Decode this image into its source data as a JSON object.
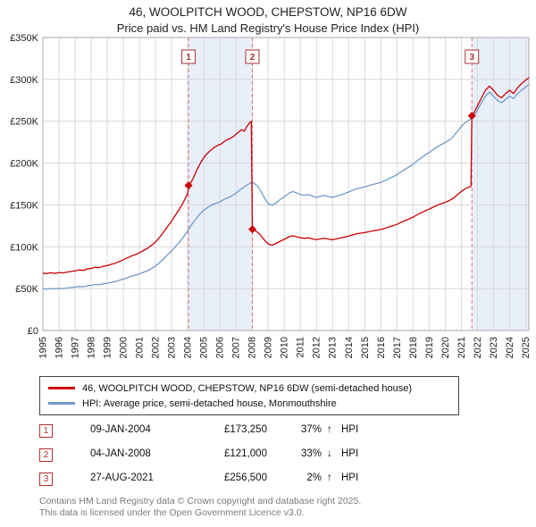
{
  "chart_data": {
    "type": "line",
    "title": "46, WOOLPITCH WOOD, CHEPSTOW, NP16 6DW",
    "subtitle": "Price paid vs. HM Land Registry's House Price Index (HPI)",
    "x_range": [
      1995,
      2025.2
    ],
    "y_range": [
      0,
      350
    ],
    "y_unit": "GBP thousands",
    "grid": true,
    "legend_position": "bottom",
    "x_ticks": [
      1995,
      1996,
      1997,
      1998,
      1999,
      2000,
      2001,
      2002,
      2003,
      2004,
      2005,
      2006,
      2007,
      2008,
      2009,
      2010,
      2011,
      2012,
      2013,
      2014,
      2015,
      2016,
      2017,
      2018,
      2019,
      2020,
      2021,
      2022,
      2023,
      2024,
      2025
    ],
    "y_ticks": [
      {
        "v": 0,
        "label": "£0"
      },
      {
        "v": 50,
        "label": "£50K"
      },
      {
        "v": 100,
        "label": "£100K"
      },
      {
        "v": 150,
        "label": "£150K"
      },
      {
        "v": 200,
        "label": "£200K"
      },
      {
        "v": 250,
        "label": "£250K"
      },
      {
        "v": 300,
        "label": "£300K"
      },
      {
        "v": 350,
        "label": "£350K"
      }
    ],
    "bands": [
      {
        "from": 2004.02,
        "to": 2008.02
      },
      {
        "from": 2021.65,
        "to": 2025.2
      }
    ],
    "sales": [
      {
        "n": "1",
        "x": 2004.05,
        "y": 173.25
      },
      {
        "n": "2",
        "x": 2008.02,
        "y": 121
      },
      {
        "n": "3",
        "x": 2021.66,
        "y": 256.5
      }
    ],
    "series": [
      {
        "id": "price-paid",
        "label": "46, WOOLPITCH WOOD, CHEPSTOW, NP16 6DW (semi-detached house)",
        "color": "#cc0000",
        "points": [
          [
            1995.0,
            68.5
          ],
          [
            1995.25,
            68.0
          ],
          [
            1995.5,
            69.0
          ],
          [
            1995.75,
            68.2
          ],
          [
            1996.0,
            69.3
          ],
          [
            1996.25,
            68.8
          ],
          [
            1996.5,
            69.8
          ],
          [
            1996.75,
            70.5
          ],
          [
            1997.0,
            71.2
          ],
          [
            1997.25,
            72.3
          ],
          [
            1997.5,
            71.8
          ],
          [
            1997.75,
            73.4
          ],
          [
            1998.0,
            74.2
          ],
          [
            1998.25,
            75.6
          ],
          [
            1998.5,
            75.0
          ],
          [
            1998.75,
            76.7
          ],
          [
            1999.0,
            77.6
          ],
          [
            1999.25,
            79.1
          ],
          [
            1999.5,
            80.3
          ],
          [
            1999.75,
            82.4
          ],
          [
            2000.0,
            84.5
          ],
          [
            2000.25,
            86.8
          ],
          [
            2000.5,
            89.0
          ],
          [
            2000.75,
            90.7
          ],
          [
            2001.0,
            92.7
          ],
          [
            2001.25,
            95.5
          ],
          [
            2001.5,
            98.2
          ],
          [
            2001.75,
            101.7
          ],
          [
            2002.0,
            105.8
          ],
          [
            2002.25,
            111.3
          ],
          [
            2002.5,
            117.5
          ],
          [
            2002.75,
            124.3
          ],
          [
            2003.0,
            130.5
          ],
          [
            2003.25,
            138.1
          ],
          [
            2003.5,
            145.6
          ],
          [
            2003.75,
            153.9
          ],
          [
            2004.0,
            164.0
          ],
          [
            2004.1,
            173.25
          ],
          [
            2004.35,
            182.0
          ],
          [
            2004.6,
            193.0
          ],
          [
            2004.85,
            202.0
          ],
          [
            2005.1,
            209.0
          ],
          [
            2005.35,
            214.0
          ],
          [
            2005.6,
            218.0
          ],
          [
            2005.85,
            221.0
          ],
          [
            2006.1,
            223.0
          ],
          [
            2006.35,
            227.0
          ],
          [
            2006.6,
            229.0
          ],
          [
            2006.85,
            232.0
          ],
          [
            2007.1,
            236.0
          ],
          [
            2007.35,
            240.0
          ],
          [
            2007.5,
            238.0
          ],
          [
            2007.65,
            243.0
          ],
          [
            2007.8,
            247.0
          ],
          [
            2007.95,
            250.0
          ],
          [
            2008.02,
            121.0
          ],
          [
            2008.25,
            118.6
          ],
          [
            2008.5,
            114.6
          ],
          [
            2008.75,
            108.4
          ],
          [
            2009.0,
            103.3
          ],
          [
            2009.25,
            101.9
          ],
          [
            2009.5,
            104.0
          ],
          [
            2009.75,
            106.7
          ],
          [
            2010.0,
            108.8
          ],
          [
            2010.25,
            111.5
          ],
          [
            2010.5,
            113.2
          ],
          [
            2010.75,
            112.2
          ],
          [
            2011.0,
            110.8
          ],
          [
            2011.25,
            110.1
          ],
          [
            2011.5,
            110.8
          ],
          [
            2011.75,
            109.5
          ],
          [
            2012.0,
            108.4
          ],
          [
            2012.25,
            109.5
          ],
          [
            2012.5,
            110.1
          ],
          [
            2012.75,
            109.1
          ],
          [
            2013.0,
            108.4
          ],
          [
            2013.25,
            109.5
          ],
          [
            2013.5,
            110.5
          ],
          [
            2013.75,
            111.5
          ],
          [
            2014.0,
            112.9
          ],
          [
            2014.25,
            114.2
          ],
          [
            2014.5,
            115.6
          ],
          [
            2014.75,
            116.3
          ],
          [
            2015.0,
            117.0
          ],
          [
            2015.25,
            118.0
          ],
          [
            2015.5,
            119.0
          ],
          [
            2015.75,
            119.7
          ],
          [
            2016.0,
            120.7
          ],
          [
            2016.25,
            122.1
          ],
          [
            2016.5,
            123.8
          ],
          [
            2016.75,
            125.1
          ],
          [
            2017.0,
            126.8
          ],
          [
            2017.25,
            129.2
          ],
          [
            2017.5,
            131.3
          ],
          [
            2017.75,
            133.3
          ],
          [
            2018.0,
            135.4
          ],
          [
            2018.25,
            138.1
          ],
          [
            2018.5,
            140.5
          ],
          [
            2018.75,
            142.9
          ],
          [
            2019.0,
            144.9
          ],
          [
            2019.25,
            147.3
          ],
          [
            2019.5,
            149.7
          ],
          [
            2019.75,
            151.4
          ],
          [
            2020.0,
            153.1
          ],
          [
            2020.25,
            155.2
          ],
          [
            2020.5,
            157.9
          ],
          [
            2020.75,
            162.0
          ],
          [
            2021.0,
            166.0
          ],
          [
            2021.25,
            169.5
          ],
          [
            2021.5,
            171.5
          ],
          [
            2021.6,
            172.0
          ],
          [
            2021.66,
            256.5
          ],
          [
            2021.75,
            259.0
          ],
          [
            2022.0,
            268.0
          ],
          [
            2022.25,
            278.0
          ],
          [
            2022.5,
            287.0
          ],
          [
            2022.75,
            292.0
          ],
          [
            2023.0,
            287.0
          ],
          [
            2023.25,
            281.0
          ],
          [
            2023.5,
            278.0
          ],
          [
            2023.75,
            283.0
          ],
          [
            2024.0,
            287.0
          ],
          [
            2024.25,
            283.0
          ],
          [
            2024.5,
            290.0
          ],
          [
            2024.75,
            295.0
          ],
          [
            2025.0,
            299.0
          ],
          [
            2025.2,
            302.0
          ]
        ]
      },
      {
        "id": "hpi",
        "label": "HPI: Average price, semi-detached house, Monmouthshire",
        "color": "#7099c9",
        "points": [
          [
            1995.0,
            50.0
          ],
          [
            1995.25,
            49.4
          ],
          [
            1995.5,
            50.1
          ],
          [
            1995.75,
            49.6
          ],
          [
            1996.0,
            50.3
          ],
          [
            1996.25,
            50.0
          ],
          [
            1996.5,
            50.8
          ],
          [
            1996.75,
            51.2
          ],
          [
            1997.0,
            51.8
          ],
          [
            1997.25,
            52.6
          ],
          [
            1997.5,
            52.2
          ],
          [
            1997.75,
            53.4
          ],
          [
            1998.0,
            54.0
          ],
          [
            1998.25,
            55.0
          ],
          [
            1998.5,
            54.6
          ],
          [
            1998.75,
            55.8
          ],
          [
            1999.0,
            56.5
          ],
          [
            1999.25,
            57.6
          ],
          [
            1999.5,
            58.4
          ],
          [
            1999.75,
            60.0
          ],
          [
            2000.0,
            61.5
          ],
          [
            2000.25,
            63.2
          ],
          [
            2000.5,
            64.8
          ],
          [
            2000.75,
            66.0
          ],
          [
            2001.0,
            67.5
          ],
          [
            2001.25,
            69.5
          ],
          [
            2001.5,
            71.5
          ],
          [
            2001.75,
            74.0
          ],
          [
            2002.0,
            77.0
          ],
          [
            2002.25,
            81.0
          ],
          [
            2002.5,
            85.5
          ],
          [
            2002.75,
            90.5
          ],
          [
            2003.0,
            95.0
          ],
          [
            2003.25,
            100.5
          ],
          [
            2003.5,
            106.0
          ],
          [
            2003.75,
            112.0
          ],
          [
            2004.0,
            119.0
          ],
          [
            2004.25,
            126.5
          ],
          [
            2004.5,
            133.0
          ],
          [
            2004.75,
            139.0
          ],
          [
            2005.0,
            143.5
          ],
          [
            2005.25,
            147.0
          ],
          [
            2005.5,
            150.0
          ],
          [
            2005.75,
            152.0
          ],
          [
            2006.0,
            153.5
          ],
          [
            2006.25,
            156.5
          ],
          [
            2006.5,
            158.5
          ],
          [
            2006.75,
            161.0
          ],
          [
            2007.0,
            164.0
          ],
          [
            2007.25,
            168.0
          ],
          [
            2007.5,
            171.5
          ],
          [
            2007.75,
            174.5
          ],
          [
            2008.0,
            177.5
          ],
          [
            2008.25,
            174.0
          ],
          [
            2008.5,
            168.0
          ],
          [
            2008.75,
            159.0
          ],
          [
            2009.0,
            151.5
          ],
          [
            2009.25,
            149.5
          ],
          [
            2009.5,
            152.5
          ],
          [
            2009.75,
            156.5
          ],
          [
            2010.0,
            159.5
          ],
          [
            2010.25,
            163.5
          ],
          [
            2010.5,
            166.0
          ],
          [
            2010.75,
            164.5
          ],
          [
            2011.0,
            162.5
          ],
          [
            2011.25,
            161.5
          ],
          [
            2011.5,
            162.5
          ],
          [
            2011.75,
            160.5
          ],
          [
            2012.0,
            159.0
          ],
          [
            2012.25,
            160.5
          ],
          [
            2012.5,
            161.5
          ],
          [
            2012.75,
            160.0
          ],
          [
            2013.0,
            159.0
          ],
          [
            2013.25,
            160.5
          ],
          [
            2013.5,
            162.0
          ],
          [
            2013.75,
            163.5
          ],
          [
            2014.0,
            165.5
          ],
          [
            2014.25,
            167.5
          ],
          [
            2014.5,
            169.5
          ],
          [
            2014.75,
            170.5
          ],
          [
            2015.0,
            171.5
          ],
          [
            2015.25,
            173.0
          ],
          [
            2015.5,
            174.5
          ],
          [
            2015.75,
            175.5
          ],
          [
            2016.0,
            177.0
          ],
          [
            2016.25,
            179.0
          ],
          [
            2016.5,
            181.5
          ],
          [
            2016.75,
            183.5
          ],
          [
            2017.0,
            186.0
          ],
          [
            2017.25,
            189.5
          ],
          [
            2017.5,
            192.5
          ],
          [
            2017.75,
            195.5
          ],
          [
            2018.0,
            198.5
          ],
          [
            2018.25,
            202.5
          ],
          [
            2018.5,
            206.0
          ],
          [
            2018.75,
            209.5
          ],
          [
            2019.0,
            212.5
          ],
          [
            2019.25,
            216.0
          ],
          [
            2019.5,
            219.5
          ],
          [
            2019.75,
            222.0
          ],
          [
            2020.0,
            224.5
          ],
          [
            2020.25,
            227.5
          ],
          [
            2020.5,
            231.5
          ],
          [
            2020.75,
            237.5
          ],
          [
            2021.0,
            243.5
          ],
          [
            2021.25,
            248.5
          ],
          [
            2021.5,
            251.5
          ],
          [
            2021.75,
            255.0
          ],
          [
            2022.0,
            263.0
          ],
          [
            2022.25,
            272.0
          ],
          [
            2022.5,
            280.0
          ],
          [
            2022.75,
            285.0
          ],
          [
            2023.0,
            280.0
          ],
          [
            2023.25,
            275.0
          ],
          [
            2023.5,
            272.0
          ],
          [
            2023.75,
            276.0
          ],
          [
            2024.0,
            280.0
          ],
          [
            2024.25,
            277.0
          ],
          [
            2024.5,
            283.0
          ],
          [
            2024.75,
            287.0
          ],
          [
            2025.0,
            291.0
          ],
          [
            2025.2,
            294.0
          ]
        ]
      }
    ],
    "colors": {
      "band": "#e9eff9",
      "grid": "#d8d8d8",
      "border": "#aaaaaa",
      "sale_line": "#dd7777",
      "marker": "#cc0000",
      "sale_box_border": "#b03030",
      "sale_box_text": "#b03030"
    }
  },
  "transactions": [
    {
      "n": "1",
      "date": "09-JAN-2004",
      "price": "£173,250",
      "pct": "37%",
      "dir": "↑",
      "ref": "HPI"
    },
    {
      "n": "2",
      "date": "04-JAN-2008",
      "price": "£121,000",
      "pct": "33%",
      "dir": "↓",
      "ref": "HPI"
    },
    {
      "n": "3",
      "date": "27-AUG-2021",
      "price": "£256,500",
      "pct": "2%",
      "dir": "↑",
      "ref": "HPI"
    }
  ],
  "footer": {
    "line1": "Contains HM Land Registry data © Crown copyright and database right 2025.",
    "line2": "This data is licensed under the Open Government Licence v3.0."
  }
}
